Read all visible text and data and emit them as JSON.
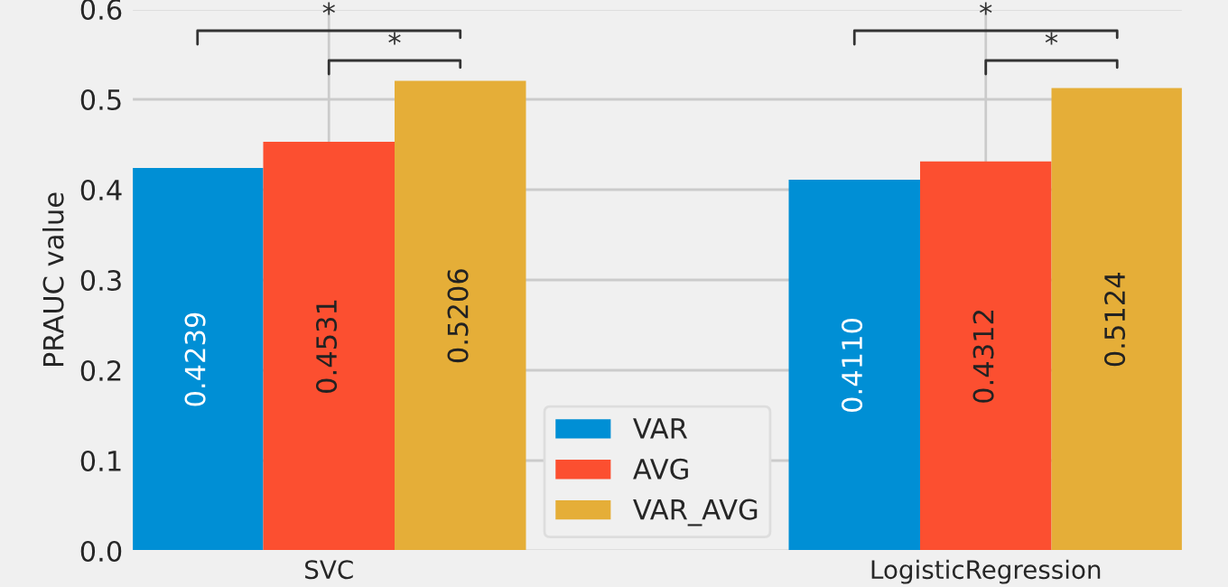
{
  "chart_data": {
    "type": "bar",
    "ylabel": "PRAUC value",
    "categories": [
      "SVC",
      "LogisticRegression"
    ],
    "series": [
      {
        "name": "VAR",
        "color": "#008fd5",
        "values": [
          0.4239,
          0.411
        ],
        "value_labels": [
          "0.4239",
          "0.4110"
        ]
      },
      {
        "name": "AVG",
        "color": "#fc4f30",
        "values": [
          0.4531,
          0.4312
        ],
        "value_labels": [
          "0.4531",
          "0.4312"
        ]
      },
      {
        "name": "VAR_AVG",
        "color": "#e5ae38",
        "values": [
          0.5206,
          0.5124
        ],
        "value_labels": [
          "0.5206",
          "0.5124"
        ]
      }
    ],
    "ylim": [
      0,
      0.6
    ],
    "yticks": [
      {
        "value": 0,
        "label": "0.0"
      },
      0.1,
      0.2,
      0.3,
      0.4,
      0.5,
      0.6
    ],
    "grid": true,
    "legend": "bottom",
    "annotations": [
      "*",
      "*",
      "*",
      "*"
    ]
  }
}
